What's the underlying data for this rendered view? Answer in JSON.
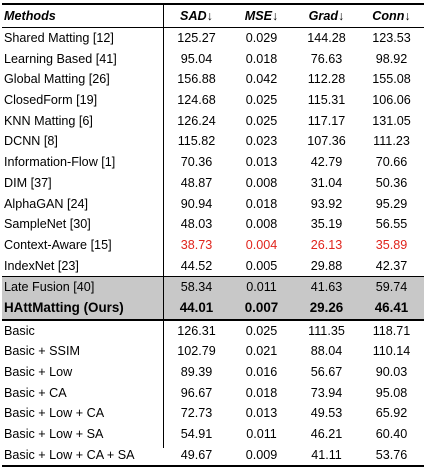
{
  "header": {
    "methods": "Methods",
    "cols": [
      "SAD↓",
      "MSE↓",
      "Grad↓",
      "Conn↓"
    ]
  },
  "section1": [
    {
      "name": "Shared Matting [12]",
      "v": [
        "125.27",
        "0.029",
        "144.28",
        "123.53"
      ]
    },
    {
      "name": "Learning Based [41]",
      "v": [
        "95.04",
        "0.018",
        "76.63",
        "98.92"
      ]
    },
    {
      "name": "Global Matting [26]",
      "v": [
        "156.88",
        "0.042",
        "112.28",
        "155.08"
      ]
    },
    {
      "name": "ClosedForm [19]",
      "v": [
        "124.68",
        "0.025",
        "115.31",
        "106.06"
      ]
    },
    {
      "name": "KNN Matting [6]",
      "v": [
        "126.24",
        "0.025",
        "117.17",
        "131.05"
      ]
    },
    {
      "name": "DCNN [8]",
      "v": [
        "115.82",
        "0.023",
        "107.36",
        "111.23"
      ]
    },
    {
      "name": "Information-Flow [1]",
      "v": [
        "70.36",
        "0.013",
        "42.79",
        "70.66"
      ]
    },
    {
      "name": "DIM [37]",
      "v": [
        "48.87",
        "0.008",
        "31.04",
        "50.36"
      ]
    },
    {
      "name": "AlphaGAN [24]",
      "v": [
        "90.94",
        "0.018",
        "93.92",
        "95.29"
      ]
    },
    {
      "name": "SampleNet [30]",
      "v": [
        "48.03",
        "0.008",
        "35.19",
        "56.55"
      ]
    },
    {
      "name": "Context-Aware [15]",
      "v": [
        "38.73",
        "0.004",
        "26.13",
        "35.89"
      ]
    },
    {
      "name": "IndexNet [23]",
      "v": [
        "44.52",
        "0.005",
        "29.88",
        "42.37"
      ]
    }
  ],
  "section2": [
    {
      "name": "Late Fusion [40]",
      "v": [
        "58.34",
        "0.011",
        "41.63",
        "59.74"
      ]
    },
    {
      "name": "HAttMatting (Ours)",
      "v": [
        "44.01",
        "0.007",
        "29.26",
        "46.41"
      ]
    }
  ],
  "section3": [
    {
      "name": "Basic",
      "v": [
        "126.31",
        "0.025",
        "111.35",
        "118.71"
      ]
    },
    {
      "name": "Basic + SSIM",
      "v": [
        "102.79",
        "0.021",
        "88.04",
        "110.14"
      ]
    },
    {
      "name": "Basic + Low",
      "v": [
        "89.39",
        "0.016",
        "56.67",
        "90.03"
      ]
    },
    {
      "name": "Basic + CA",
      "v": [
        "96.67",
        "0.018",
        "73.94",
        "95.08"
      ]
    },
    {
      "name": "Basic + Low + CA",
      "v": [
        "72.73",
        "0.013",
        "49.53",
        "65.92"
      ]
    },
    {
      "name": "Basic + Low + SA",
      "v": [
        "54.91",
        "0.011",
        "46.21",
        "60.40"
      ]
    },
    {
      "name": "Basic + Low + CA + SA",
      "v": [
        "49.67",
        "0.009",
        "41.11",
        "53.76"
      ]
    }
  ],
  "colors": {
    "highlight_red": "#e0241c",
    "band_gray": "#c8c8c8"
  }
}
